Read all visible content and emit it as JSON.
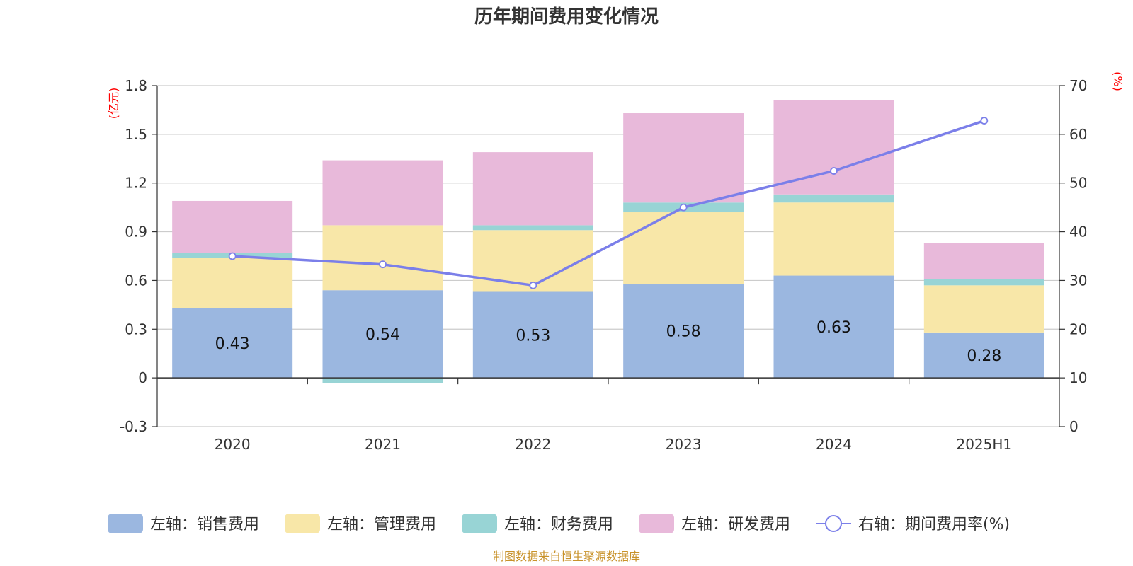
{
  "chart_data": {
    "type": "bar",
    "title": "历年期间费用变化情况",
    "categories": [
      "2020",
      "2021",
      "2022",
      "2023",
      "2024",
      "2025H1"
    ],
    "left_axis": {
      "unit": "(亿元)",
      "ylim": [
        -0.3,
        1.8
      ],
      "ticks": [
        "1.8",
        "1.5",
        "1.2",
        "0.9",
        "0.6",
        "0.3",
        "0",
        "-0.3"
      ],
      "tick_values": [
        1.8,
        1.5,
        1.2,
        0.9,
        0.6,
        0.3,
        0,
        -0.3
      ]
    },
    "right_axis": {
      "unit": "(%)",
      "ylim": [
        0,
        70
      ],
      "ticks": [
        "70",
        "60",
        "50",
        "40",
        "30",
        "20",
        "10",
        "0"
      ],
      "tick_values": [
        70,
        60,
        50,
        40,
        30,
        20,
        10,
        0
      ]
    },
    "series": [
      {
        "name": "左轴：销售费用",
        "type": "bar",
        "color": "#9bb7e0",
        "values": [
          0.43,
          0.54,
          0.53,
          0.58,
          0.63,
          0.28
        ],
        "labels": [
          "0.43",
          "0.54",
          "0.53",
          "0.58",
          "0.63",
          "0.28"
        ]
      },
      {
        "name": "左轴：管理费用",
        "type": "bar",
        "color": "#f8e7a8",
        "values": [
          0.31,
          0.4,
          0.38,
          0.44,
          0.45,
          0.29
        ]
      },
      {
        "name": "左轴：财务费用",
        "type": "bar",
        "color": "#98d4d5",
        "values": [
          0.03,
          -0.03,
          0.03,
          0.06,
          0.05,
          0.04
        ]
      },
      {
        "name": "左轴：研发费用",
        "type": "bar",
        "color": "#e8b9da",
        "values": [
          0.32,
          0.4,
          0.45,
          0.55,
          0.58,
          0.22
        ]
      },
      {
        "name": "右轴：期间费用率(%)",
        "type": "line",
        "axis": "right",
        "color": "#7b7fe9",
        "values": [
          35.0,
          33.3,
          29.0,
          45.0,
          52.5,
          62.8
        ]
      }
    ],
    "legend_position": "bottom",
    "grid": true
  },
  "source_note": "制图数据来自恒生聚源数据库"
}
